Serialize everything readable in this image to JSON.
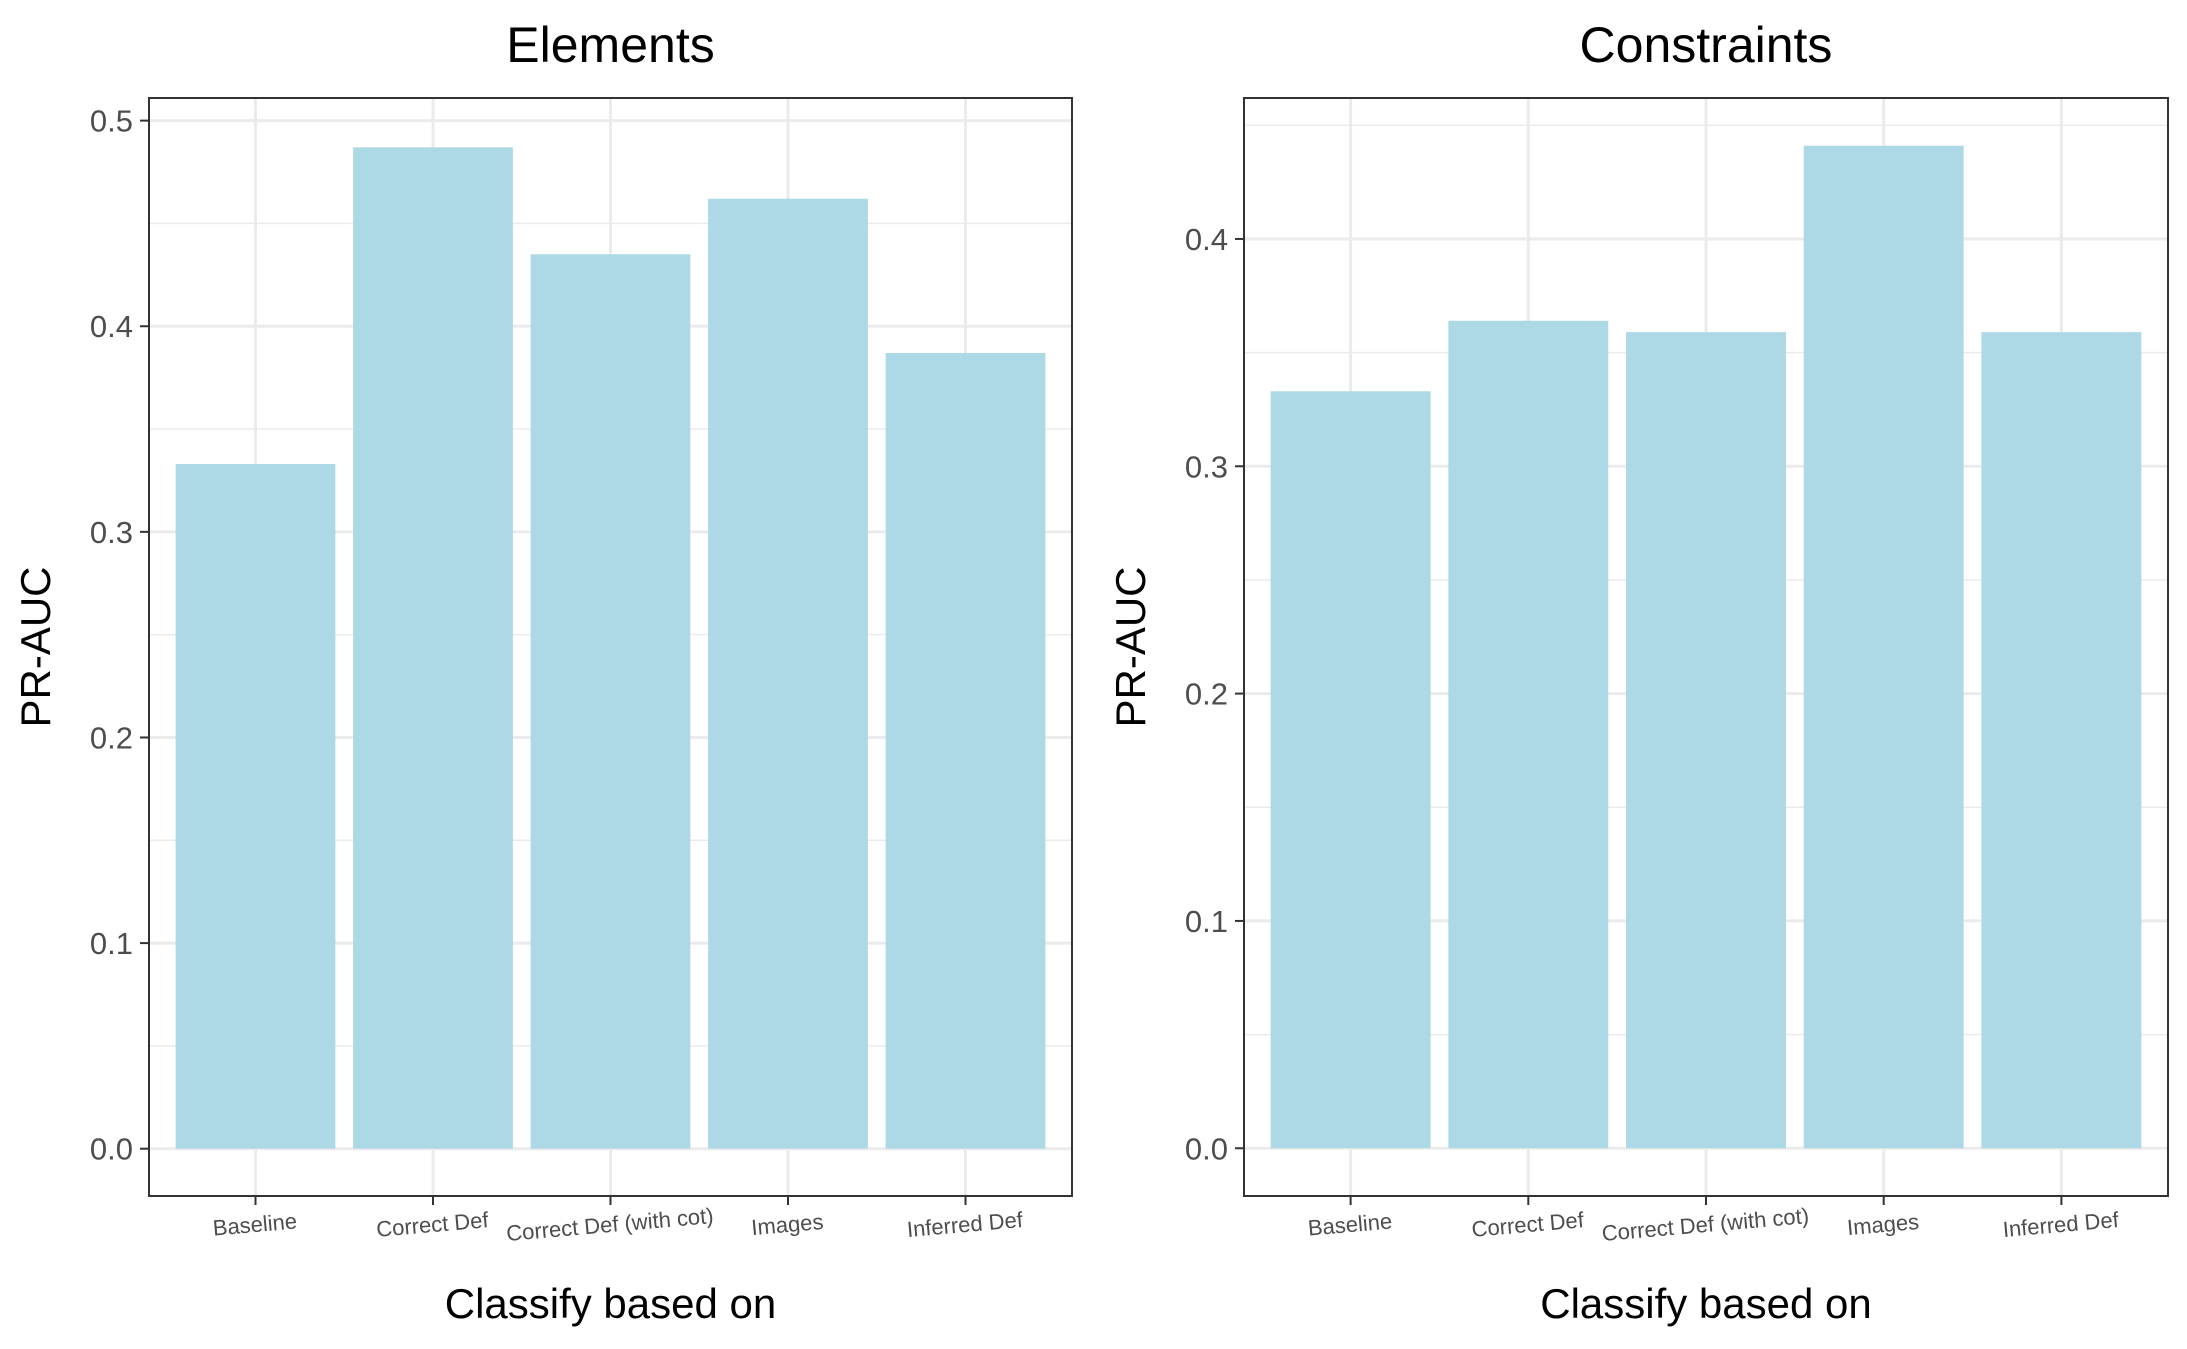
{
  "chart_data": [
    {
      "type": "bar",
      "title": "Elements",
      "xlabel": "Classify based on",
      "ylabel": "PR-AUC",
      "categories": [
        "Baseline",
        "Correct Def",
        "Correct Def (with cot)",
        "Images",
        "Inferred Def"
      ],
      "values": [
        0.333,
        0.487,
        0.435,
        0.462,
        0.387
      ],
      "ylim": [
        -0.023,
        0.511
      ],
      "yticks": [
        "0.0",
        "0.1",
        "0.2",
        "0.3",
        "0.4",
        "0.5"
      ],
      "grid": true,
      "legend": "none",
      "colors": {
        "bar": "#add8e6",
        "grid": "#ebebeb",
        "border": "#333333"
      }
    },
    {
      "type": "bar",
      "title": "Constraints",
      "xlabel": "Classify based on",
      "ylabel": "PR-AUC",
      "categories": [
        "Baseline",
        "Correct Def",
        "Correct Def (with cot)",
        "Images",
        "Inferred Def"
      ],
      "values": [
        0.333,
        0.364,
        0.359,
        0.441,
        0.359
      ],
      "ylim": [
        -0.021,
        0.462
      ],
      "yticks": [
        "0.0",
        "0.1",
        "0.2",
        "0.3",
        "0.4"
      ],
      "grid": true,
      "legend": "none",
      "colors": {
        "bar": "#add8e6",
        "grid": "#ebebeb",
        "border": "#333333"
      }
    }
  ]
}
